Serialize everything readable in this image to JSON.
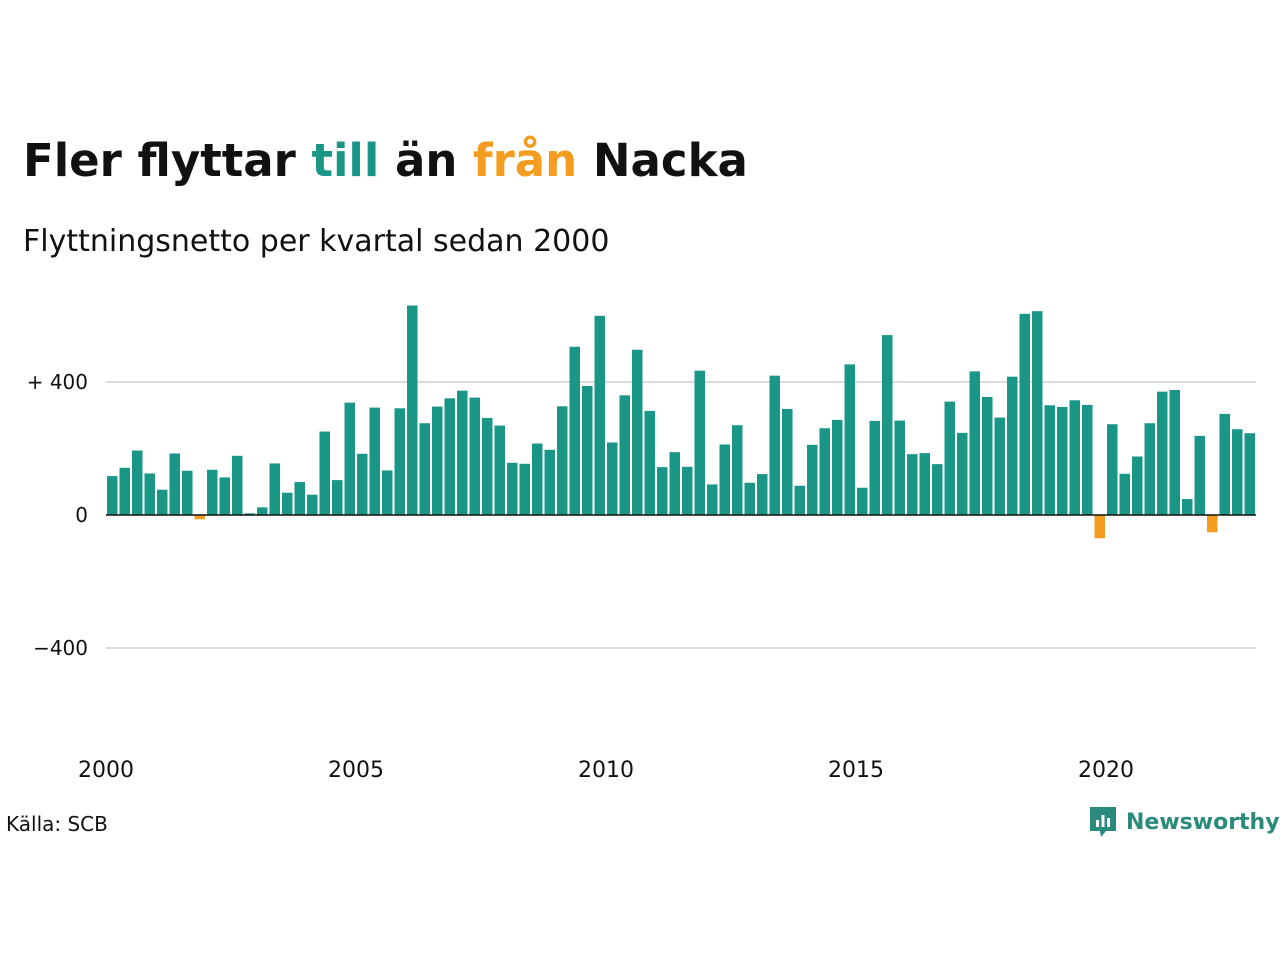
{
  "title": {
    "part1": "Fler flyttar ",
    "highlight1": "till",
    "part2": " än ",
    "highlight2": "från",
    "part3": " Nacka"
  },
  "subtitle": "Flyttningsnetto per kvartal sedan 2000",
  "source": "Källa: SCB",
  "brand": {
    "name": "Newsworthy",
    "icon": "newsworthy-logo-icon"
  },
  "colors": {
    "positive": "#1a9687",
    "negative": "#f39c1f",
    "gridline": "#dcdcdc",
    "axis": "#111111",
    "brand": "#2a8a7c"
  },
  "chart_data": {
    "type": "bar",
    "start_period": "2000 Q1",
    "frequency": "quarterly",
    "xlabel": "",
    "ylabel": "",
    "ylim": [
      -660,
      660
    ],
    "yticks": [
      {
        "value": 400,
        "label": "+ 400"
      },
      {
        "value": 0,
        "label": "0"
      },
      {
        "value": -400,
        "label": "−400"
      }
    ],
    "xticks": [
      {
        "index": 0,
        "label": "2000"
      },
      {
        "index": 20,
        "label": "2005"
      },
      {
        "index": 40,
        "label": "2010"
      },
      {
        "index": 60,
        "label": "2015"
      },
      {
        "index": 80,
        "label": "2020"
      }
    ],
    "grid": true,
    "values": [
      117,
      142,
      194,
      125,
      76,
      185,
      133,
      -13,
      136,
      113,
      178,
      5,
      23,
      155,
      67,
      99,
      61,
      251,
      105,
      338,
      184,
      323,
      134,
      321,
      630,
      276,
      326,
      351,
      374,
      353,
      292,
      269,
      157,
      154,
      215,
      196,
      327,
      506,
      388,
      599,
      218,
      360,
      497,
      313,
      144,
      189,
      145,
      434,
      92,
      212,
      270,
      97,
      123,
      419,
      319,
      88,
      211,
      261,
      286,
      453,
      82,
      283,
      541,
      284,
      183,
      186,
      153,
      341,
      247,
      432,
      355,
      293,
      416,
      605,
      613,
      330,
      325,
      345,
      331,
      -70,
      273,
      124,
      176,
      276,
      371,
      376,
      48,
      238,
      -52,
      304,
      258,
      246
    ]
  }
}
